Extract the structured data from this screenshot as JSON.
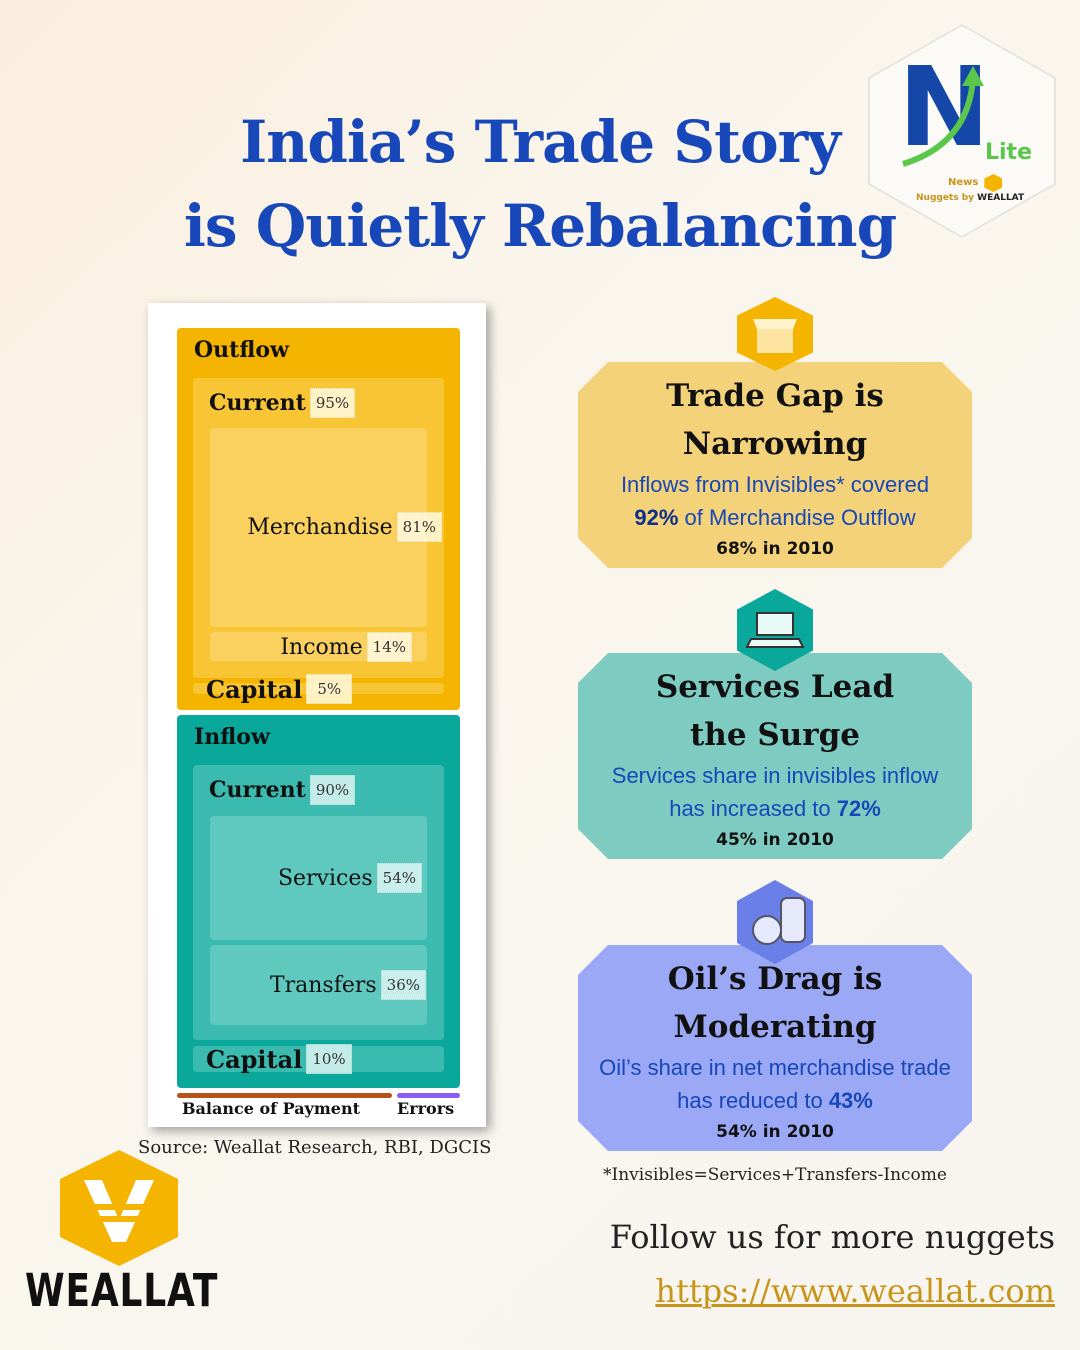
{
  "title": {
    "line1": "India’s Trade Story",
    "line2": "is Quietly Rebalancing"
  },
  "badge": {
    "letter": "N",
    "word": "Lite",
    "tagline1": "News",
    "tagline2": "Nuggets by",
    "brand": "WEALLAT"
  },
  "chart": {
    "outflow": {
      "label": "Outflow",
      "current": {
        "label": "Current",
        "pct": "95%"
      },
      "merchandise": {
        "label": "Merchandise",
        "pct": "81%"
      },
      "income": {
        "label": "Income",
        "pct": "14%"
      },
      "capital": {
        "label": "Capital",
        "pct": "5%"
      }
    },
    "inflow": {
      "label": "Inflow",
      "current": {
        "label": "Current",
        "pct": "90%"
      },
      "services": {
        "label": "Services",
        "pct": "54%"
      },
      "transfers": {
        "label": "Transfers",
        "pct": "36%"
      },
      "capital": {
        "label": "Capital",
        "pct": "10%"
      }
    },
    "legend": {
      "bop": "Balance of Payment",
      "errors": "Errors"
    },
    "colors": {
      "outflow": "#f5b400",
      "inflow": "#0aa89a",
      "bop": "#b5531a",
      "errors": "#8b5cf6"
    }
  },
  "source": "Source: Weallat Research, RBI, DGCIS",
  "cards": [
    {
      "title1": "Trade Gap is",
      "title2": "Narrowing",
      "text1": "Inflows from Invisibles* covered",
      "text2_bold": "92%",
      "text2": " of Merchandise Outflow",
      "year": "68% in 2010",
      "icon": "box-icon"
    },
    {
      "title1": "Services Lead",
      "title2": "the Surge",
      "text1": "Services share in invisibles inflow",
      "text2": "has increased to ",
      "text2_bold": "72%",
      "year": "45% in 2010",
      "icon": "laptop-icon"
    },
    {
      "title1": "Oil’s Drag is",
      "title2": "Moderating",
      "text1": "Oil’s share in net merchandise trade",
      "text2": "has reduced to ",
      "text2_bold": "43%",
      "year": "54% in 2010",
      "icon": "oil-barrel-icon"
    }
  ],
  "footnote": "*Invisibles=Services+Transfers-Income",
  "follow": "Follow us for more nuggets",
  "url": "https://www.weallat.com",
  "logo": {
    "text": "WEALLAT"
  }
}
